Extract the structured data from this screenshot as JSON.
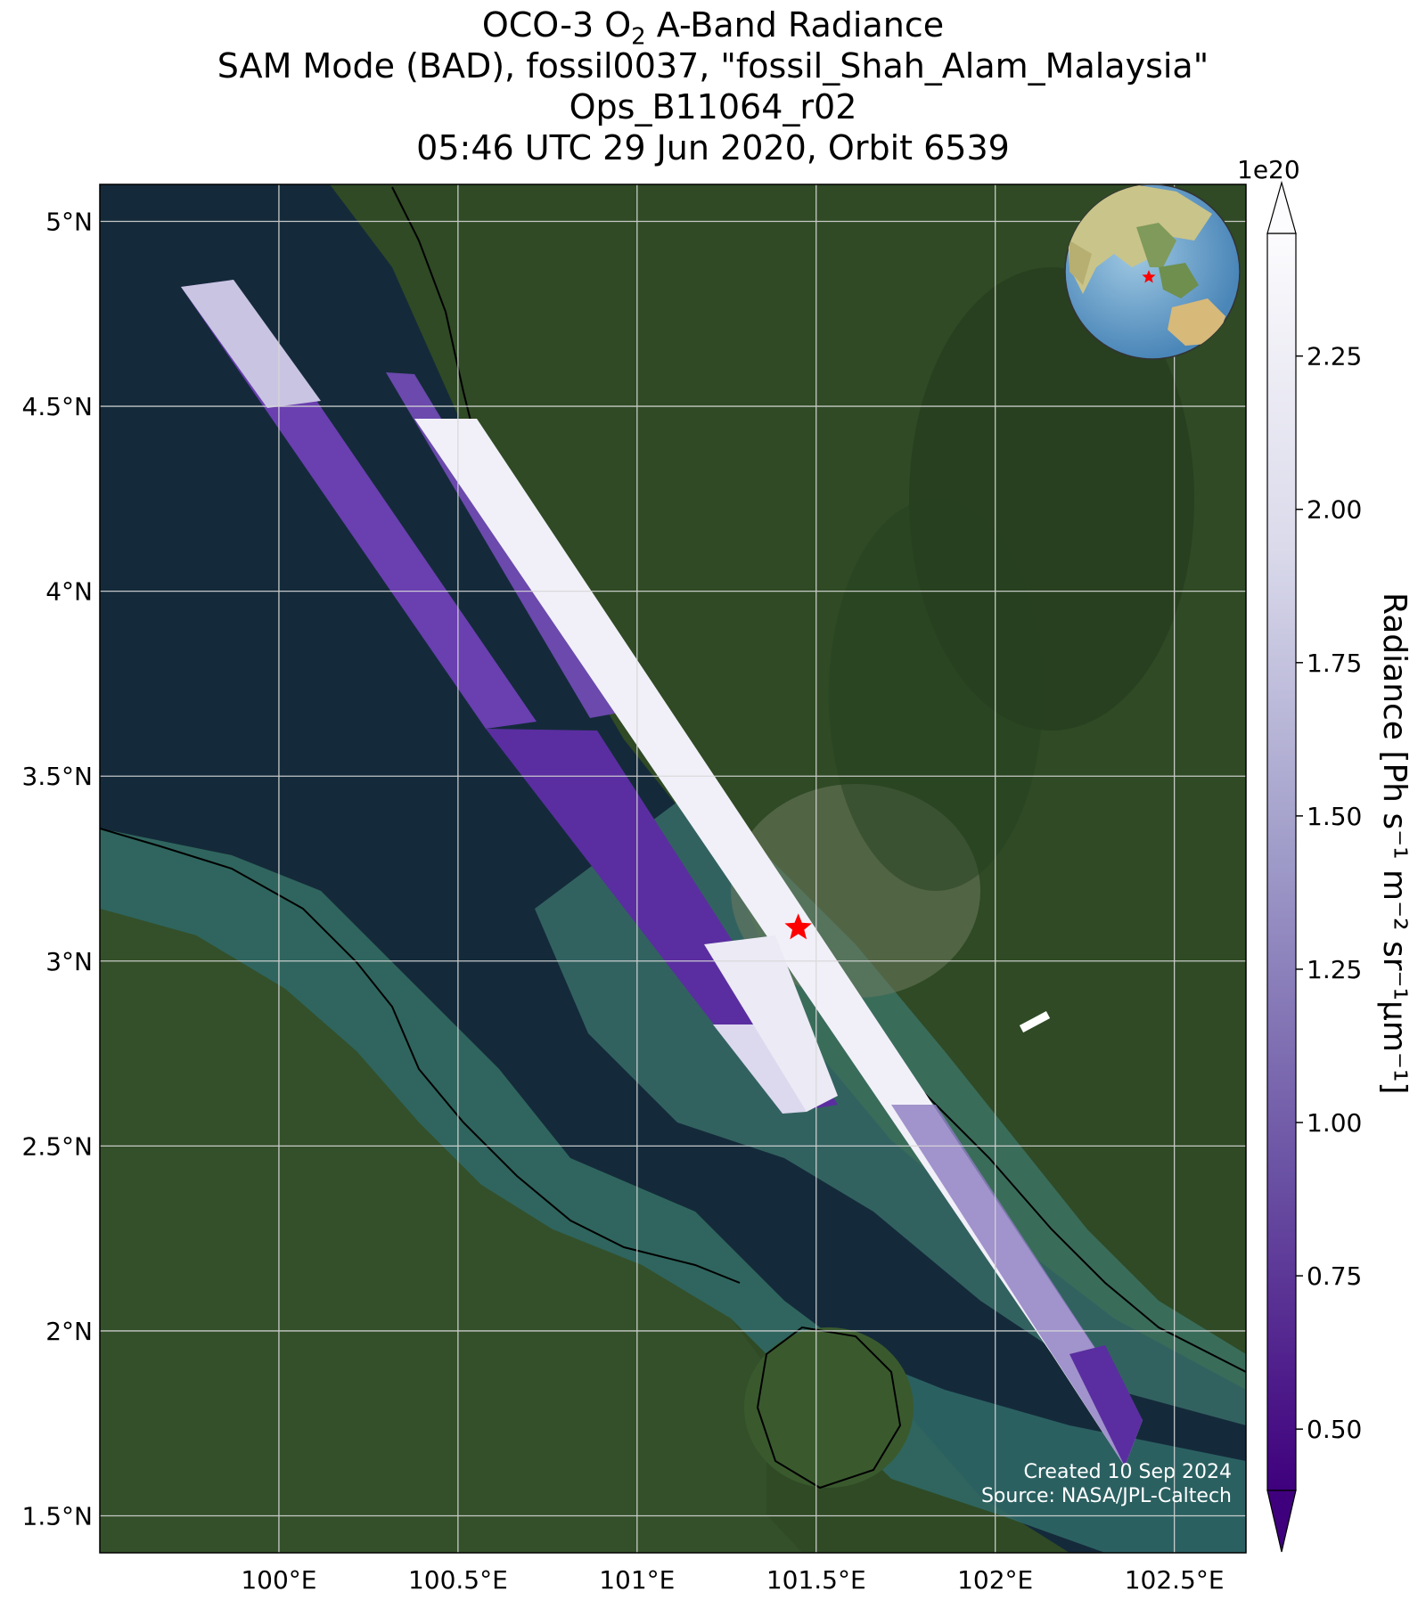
{
  "title": {
    "line1_pre": "OCO-3 O",
    "line1_sub": "2",
    "line1_post": " A-Band Radiance",
    "line2": "SAM Mode (BAD), fossil0037, \"fossil_Shah_Alam_Malaysia\"",
    "line3": "Ops_B11064_r02",
    "line4": "05:46 UTC 29 Jun 2020, Orbit 6539"
  },
  "map": {
    "lon_range": [
      99.5,
      102.7
    ],
    "lat_range": [
      1.4,
      5.1
    ],
    "lon_ticks": [
      "100°E",
      "100.5°E",
      "101°E",
      "101.5°E",
      "102°E",
      "102.5°E"
    ],
    "lon_tick_values": [
      100.0,
      100.5,
      101.0,
      101.5,
      102.0,
      102.5
    ],
    "lat_ticks": [
      "5°N",
      "4.5°N",
      "4°N",
      "3.5°N",
      "3°N",
      "2.5°N",
      "2°N",
      "1.5°N"
    ],
    "lat_tick_values": [
      5.0,
      4.5,
      4.0,
      3.5,
      3.0,
      2.5,
      2.0,
      1.5
    ],
    "target": {
      "lon": 101.45,
      "lat": 3.09,
      "marker": "red-star"
    },
    "colors": {
      "sea": "#142a3a",
      "shallow_sea": "#2f6a68",
      "land": "#2f4a25",
      "grid": "#d8d8d8"
    }
  },
  "colorbar": {
    "label": "Radiance [Ph s⁻¹ m⁻² sr⁻¹µm⁻¹]",
    "exponent": "1e20",
    "range": [
      0.4,
      2.45
    ],
    "ticks": [
      "0.50",
      "0.75",
      "1.00",
      "1.25",
      "1.50",
      "1.75",
      "2.00",
      "2.25"
    ],
    "tick_values": [
      0.5,
      0.75,
      1.0,
      1.25,
      1.5,
      1.75,
      2.0,
      2.25
    ],
    "colormap": "Purples_r",
    "extend": "both"
  },
  "credits": {
    "created": "Created 10 Sep 2024",
    "source": "Source: NASA/JPL-Caltech"
  },
  "inset": {
    "type": "globe",
    "marker": "red-star"
  }
}
